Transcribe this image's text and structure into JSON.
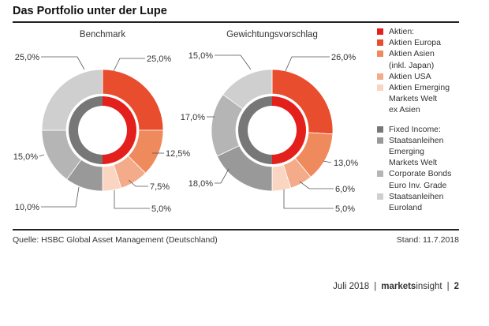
{
  "title": "Das Portfolio unter der Lupe",
  "source": "Quelle: HSBC Global Asset Management (Deutschland)",
  "stand": "Stand: 11.7.2018",
  "footer": {
    "date": "Juli 2018",
    "brand_bold": "markets",
    "brand_light": "insight",
    "page": "2"
  },
  "colors": {
    "aktien": "#e3201b",
    "aktien_europa": "#e84e2d",
    "aktien_asien": "#ef8a5d",
    "aktien_usa": "#f4ab8a",
    "aktien_em": "#fad5c2",
    "fixed_income": "#777777",
    "staatsanleihen_em": "#999999",
    "corporate_bonds": "#b5b5b5",
    "staatsanleihen_euro": "#cfcfcf"
  },
  "legend": [
    {
      "label": "Aktien:",
      "color_key": "aktien"
    },
    {
      "label": "Aktien Europa",
      "color_key": "aktien_europa"
    },
    {
      "label": "Aktien Asien",
      "color_key": "aktien_asien"
    },
    {
      "label": "(inkl. Japan)",
      "color_key": ""
    },
    {
      "label": "Aktien USA",
      "color_key": "aktien_usa"
    },
    {
      "label": "Aktien Emerging",
      "color_key": "aktien_em"
    },
    {
      "label": "Markets Welt",
      "color_key": ""
    },
    {
      "label": "ex Asien",
      "color_key": ""
    },
    {
      "label": "",
      "color_key": "gap"
    },
    {
      "label": "Fixed Income:",
      "color_key": "fixed_income"
    },
    {
      "label": "Staatsanleihen",
      "color_key": "staatsanleihen_em"
    },
    {
      "label": "Emerging",
      "color_key": ""
    },
    {
      "label": "Markets Welt",
      "color_key": ""
    },
    {
      "label": "Corporate Bonds",
      "color_key": "corporate_bonds"
    },
    {
      "label": "Euro Inv. Grade",
      "color_key": ""
    },
    {
      "label": "Staatsanleihen",
      "color_key": "staatsanleihen_euro"
    },
    {
      "label": "Euroland",
      "color_key": ""
    }
  ],
  "chart_data": [
    {
      "type": "pie",
      "title": "Benchmark",
      "inner_groups": [
        {
          "name": "Aktien",
          "value": 50.0,
          "color_key": "aktien"
        },
        {
          "name": "Fixed Income",
          "value": 50.0,
          "color_key": "fixed_income"
        }
      ],
      "slices": [
        {
          "name": "Aktien Europa",
          "value": 25.0,
          "label": "25,0%",
          "color_key": "aktien_europa"
        },
        {
          "name": "Aktien Asien (inkl. Japan)",
          "value": 12.5,
          "label": "12,5%",
          "color_key": "aktien_asien"
        },
        {
          "name": "Aktien USA",
          "value": 7.5,
          "label": "7,5%",
          "color_key": "aktien_usa"
        },
        {
          "name": "Aktien Emerging Markets Welt ex Asien",
          "value": 5.0,
          "label": "5,0%",
          "color_key": "aktien_em"
        },
        {
          "name": "Staatsanleihen Emerging Markets Welt",
          "value": 10.0,
          "label": "10,0%",
          "color_key": "staatsanleihen_em"
        },
        {
          "name": "Corporate Bonds Euro Inv. Grade",
          "value": 15.0,
          "label": "15,0%",
          "color_key": "corporate_bonds"
        },
        {
          "name": "Staatsanleihen Euroland",
          "value": 25.0,
          "label": "25,0%",
          "color_key": "staatsanleihen_euro"
        }
      ]
    },
    {
      "type": "pie",
      "title": "Gewichtungsvorschlag",
      "inner_groups": [
        {
          "name": "Aktien",
          "value": 50.0,
          "color_key": "aktien"
        },
        {
          "name": "Fixed Income",
          "value": 50.0,
          "color_key": "fixed_income"
        }
      ],
      "slices": [
        {
          "name": "Aktien Europa",
          "value": 26.0,
          "label": "26,0%",
          "color_key": "aktien_europa"
        },
        {
          "name": "Aktien Asien (inkl. Japan)",
          "value": 13.0,
          "label": "13,0%",
          "color_key": "aktien_asien"
        },
        {
          "name": "Aktien USA",
          "value": 6.0,
          "label": "6,0%",
          "color_key": "aktien_usa"
        },
        {
          "name": "Aktien Emerging Markets Welt ex Asien",
          "value": 5.0,
          "label": "5,0%",
          "color_key": "aktien_em"
        },
        {
          "name": "Staatsanleihen Emerging Markets Welt",
          "value": 18.0,
          "label": "18,0%",
          "color_key": "staatsanleihen_em"
        },
        {
          "name": "Corporate Bonds Euro Inv. Grade",
          "value": 17.0,
          "label": "17,0%",
          "color_key": "corporate_bonds"
        },
        {
          "name": "Staatsanleihen Euroland",
          "value": 15.0,
          "label": "15,0%",
          "color_key": "staatsanleihen_euro"
        }
      ]
    }
  ]
}
